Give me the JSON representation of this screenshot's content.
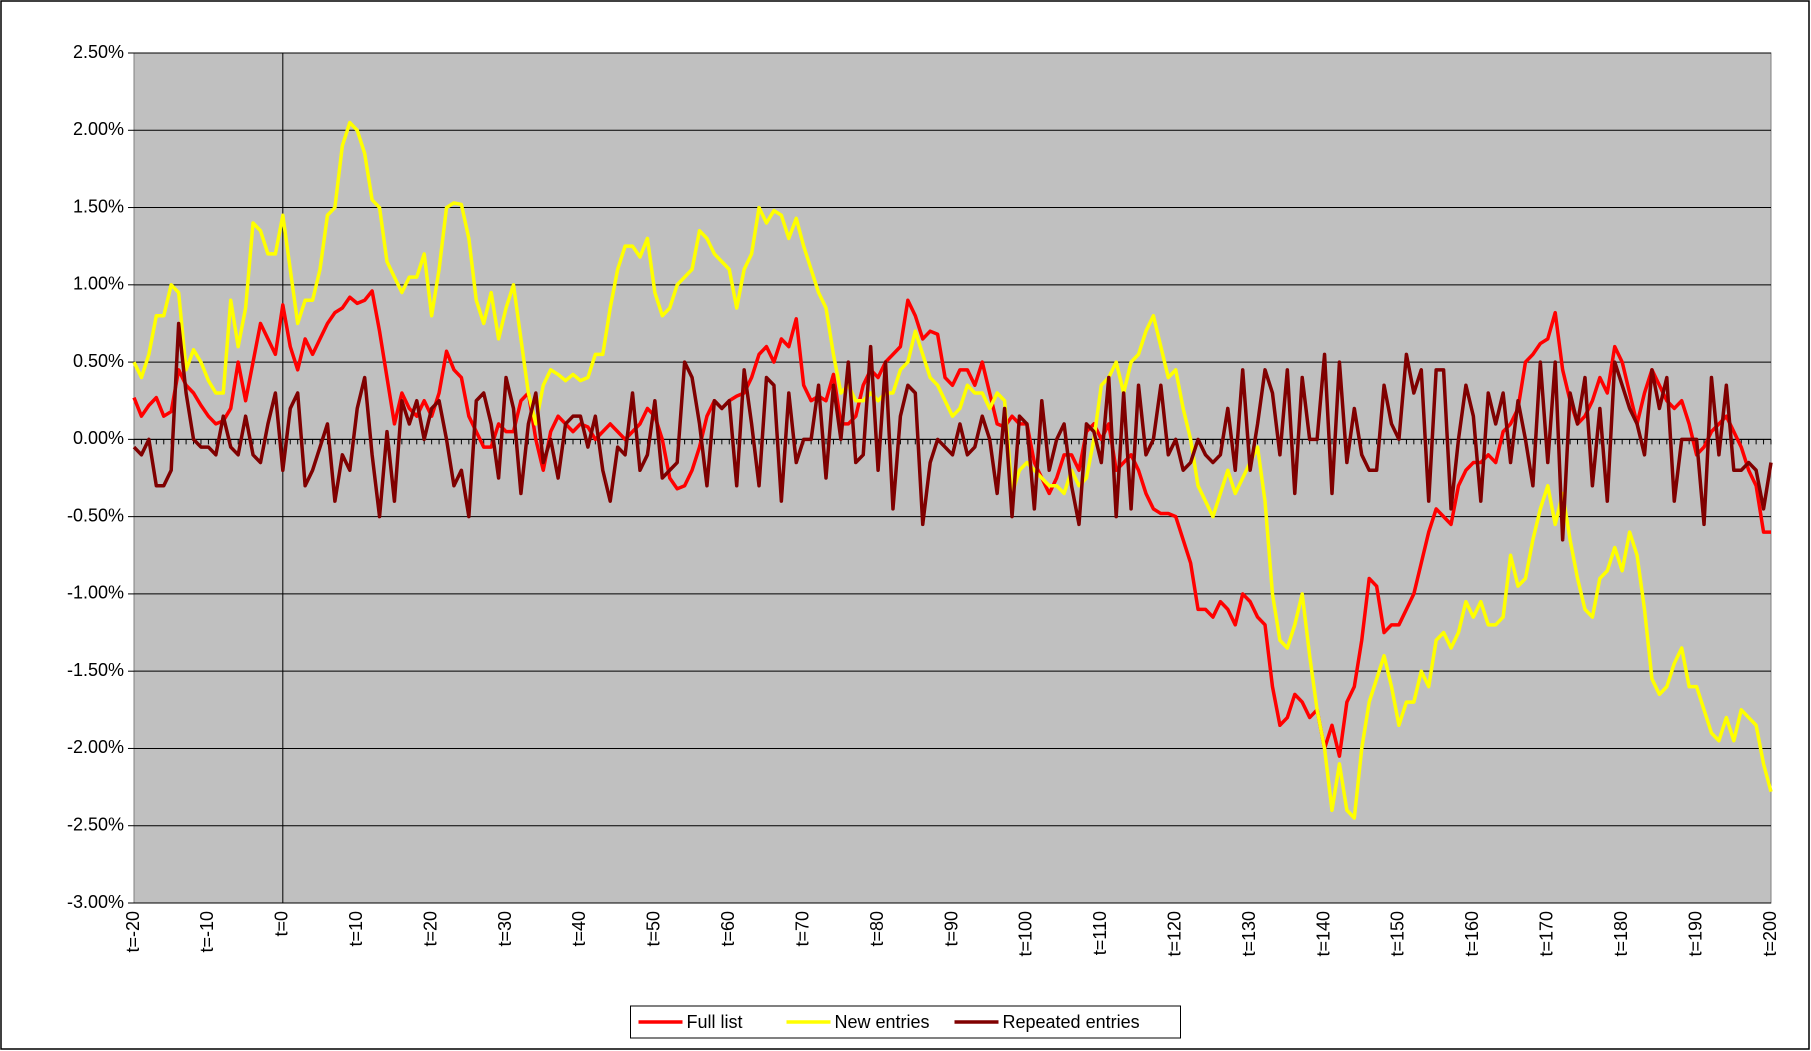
{
  "chart_data": {
    "type": "line",
    "categories": [
      "t=-20",
      null,
      null,
      null,
      null,
      null,
      null,
      null,
      null,
      null,
      "t=-10",
      null,
      null,
      null,
      null,
      null,
      null,
      null,
      null,
      null,
      "t=0",
      null,
      null,
      null,
      null,
      null,
      null,
      null,
      null,
      null,
      "t=10",
      null,
      null,
      null,
      null,
      null,
      null,
      null,
      null,
      null,
      "t=20",
      null,
      null,
      null,
      null,
      null,
      null,
      null,
      null,
      null,
      "t=30",
      null,
      null,
      null,
      null,
      null,
      null,
      null,
      null,
      null,
      "t=40",
      null,
      null,
      null,
      null,
      null,
      null,
      null,
      null,
      null,
      "t=50",
      null,
      null,
      null,
      null,
      null,
      null,
      null,
      null,
      null,
      "t=60",
      null,
      null,
      null,
      null,
      null,
      null,
      null,
      null,
      null,
      "t=70",
      null,
      null,
      null,
      null,
      null,
      null,
      null,
      null,
      null,
      "t=80",
      null,
      null,
      null,
      null,
      null,
      null,
      null,
      null,
      null,
      "t=90",
      null,
      null,
      null,
      null,
      null,
      null,
      null,
      null,
      null,
      "t=100",
      null,
      null,
      null,
      null,
      null,
      null,
      null,
      null,
      null,
      "t=110",
      null,
      null,
      null,
      null,
      null,
      null,
      null,
      null,
      null,
      "t=120",
      null,
      null,
      null,
      null,
      null,
      null,
      null,
      null,
      null,
      "t=130",
      null,
      null,
      null,
      null,
      null,
      null,
      null,
      null,
      null,
      "t=140",
      null,
      null,
      null,
      null,
      null,
      null,
      null,
      null,
      null,
      "t=150",
      null,
      null,
      null,
      null,
      null,
      null,
      null,
      null,
      null,
      "t=160",
      null,
      null,
      null,
      null,
      null,
      null,
      null,
      null,
      null,
      "t=170",
      null,
      null,
      null,
      null,
      null,
      null,
      null,
      null,
      null,
      "t=180",
      null,
      null,
      null,
      null,
      null,
      null,
      null,
      null,
      null,
      "t=190",
      null,
      null,
      null,
      null,
      null,
      null,
      null,
      null,
      null,
      "t=200"
    ],
    "series": [
      {
        "name": "Full list",
        "color": "#ff0000",
        "values": [
          0.27,
          0.15,
          0.22,
          0.27,
          0.15,
          0.18,
          0.45,
          0.35,
          0.3,
          0.22,
          0.15,
          0.1,
          0.12,
          0.2,
          0.5,
          0.25,
          0.5,
          0.75,
          0.65,
          0.55,
          0.87,
          0.6,
          0.45,
          0.65,
          0.55,
          0.65,
          0.75,
          0.82,
          0.85,
          0.92,
          0.88,
          0.9,
          0.96,
          0.7,
          0.4,
          0.1,
          0.3,
          0.2,
          0.15,
          0.25,
          0.15,
          0.3,
          0.57,
          0.45,
          0.4,
          0.15,
          0.05,
          -0.05,
          -0.05,
          0.1,
          0.05,
          0.05,
          0.25,
          0.3,
          0,
          -0.2,
          0.05,
          0.15,
          0.1,
          0.05,
          0.1,
          0.08,
          0,
          0.05,
          0.1,
          0.05,
          0,
          0.05,
          0.1,
          0.2,
          0.15,
          0,
          -0.25,
          -0.32,
          -0.3,
          -0.2,
          -0.05,
          0.15,
          0.25,
          0.2,
          0.25,
          0.28,
          0.3,
          0.4,
          0.55,
          0.6,
          0.5,
          0.65,
          0.6,
          0.78,
          0.35,
          0.25,
          0.28,
          0.25,
          0.42,
          0.1,
          0.1,
          0.15,
          0.35,
          0.45,
          0.4,
          0.5,
          0.55,
          0.6,
          0.9,
          0.8,
          0.65,
          0.7,
          0.68,
          0.4,
          0.35,
          0.45,
          0.45,
          0.35,
          0.5,
          0.3,
          0.1,
          0.08,
          0.15,
          0.1,
          0.1,
          -0.15,
          -0.25,
          -0.35,
          -0.25,
          -0.1,
          -0.1,
          -0.2,
          0.05,
          0.1,
          0,
          0.1,
          -0.2,
          -0.15,
          -0.1,
          -0.2,
          -0.35,
          -0.45,
          -0.48,
          -0.48,
          -0.5,
          -0.65,
          -0.8,
          -1.1,
          -1.1,
          -1.15,
          -1.05,
          -1.1,
          -1.2,
          -1,
          -1.05,
          -1.15,
          -1.2,
          -1.6,
          -1.85,
          -1.8,
          -1.65,
          -1.7,
          -1.8,
          -1.75,
          -2,
          -1.85,
          -2.05,
          -1.7,
          -1.6,
          -1.3,
          -0.9,
          -0.95,
          -1.25,
          -1.2,
          -1.2,
          -1.1,
          -1,
          -0.8,
          -0.6,
          -0.45,
          -0.5,
          -0.55,
          -0.3,
          -0.2,
          -0.15,
          -0.15,
          -0.1,
          -0.15,
          0.05,
          0.1,
          0.2,
          0.5,
          0.55,
          0.62,
          0.65,
          0.82,
          0.45,
          0.25,
          0.1,
          0.15,
          0.25,
          0.4,
          0.3,
          0.6,
          0.5,
          0.3,
          0.1,
          0.3,
          0.45,
          0.35,
          0.25,
          0.2,
          0.25,
          0.1,
          -0.1,
          -0.05,
          0.05,
          0.1,
          0.15,
          0.05,
          -0.05,
          -0.2,
          -0.3,
          -0.6,
          -0.6
        ]
      },
      {
        "name": "New entries",
        "color": "#ffff00",
        "values": [
          0.5,
          0.4,
          0.55,
          0.8,
          0.8,
          1.0,
          0.95,
          0.45,
          0.58,
          0.5,
          0.38,
          0.3,
          0.3,
          0.9,
          0.6,
          0.85,
          1.4,
          1.35,
          1.2,
          1.2,
          1.45,
          1.1,
          0.75,
          0.9,
          0.9,
          1.1,
          1.45,
          1.5,
          1.9,
          2.05,
          2.0,
          1.85,
          1.55,
          1.5,
          1.15,
          1.05,
          0.95,
          1.05,
          1.05,
          1.2,
          0.8,
          1.1,
          1.5,
          1.53,
          1.52,
          1.3,
          0.9,
          0.75,
          0.95,
          0.65,
          0.85,
          1.0,
          0.65,
          0.3,
          0.1,
          0.35,
          0.45,
          0.42,
          0.38,
          0.42,
          0.38,
          0.4,
          0.55,
          0.55,
          0.85,
          1.1,
          1.25,
          1.25,
          1.18,
          1.3,
          0.95,
          0.8,
          0.85,
          1.0,
          1.05,
          1.1,
          1.35,
          1.3,
          1.2,
          1.15,
          1.1,
          0.85,
          1.1,
          1.2,
          1.5,
          1.4,
          1.48,
          1.45,
          1.3,
          1.43,
          1.25,
          1.1,
          0.95,
          0.85,
          0.55,
          0.3,
          0.35,
          0.25,
          0.25,
          0.3,
          0.25,
          0.3,
          0.3,
          0.45,
          0.5,
          0.7,
          0.55,
          0.4,
          0.35,
          0.25,
          0.15,
          0.2,
          0.35,
          0.3,
          0.3,
          0.2,
          0.3,
          0.25,
          -0.35,
          -0.2,
          -0.15,
          -0.2,
          -0.25,
          -0.3,
          -0.3,
          -0.35,
          -0.2,
          -0.3,
          -0.25,
          0,
          0.35,
          0.4,
          0.5,
          0.3,
          0.5,
          0.55,
          0.7,
          0.8,
          0.6,
          0.4,
          0.45,
          0.2,
          0,
          -0.3,
          -0.4,
          -0.5,
          -0.35,
          -0.2,
          -0.35,
          -0.25,
          -0.15,
          -0.05,
          -0.4,
          -1.0,
          -1.3,
          -1.35,
          -1.2,
          -1.0,
          -1.4,
          -1.75,
          -2.0,
          -2.4,
          -2.1,
          -2.4,
          -2.45,
          -2.0,
          -1.7,
          -1.55,
          -1.4,
          -1.6,
          -1.85,
          -1.7,
          -1.7,
          -1.5,
          -1.6,
          -1.3,
          -1.25,
          -1.35,
          -1.25,
          -1.05,
          -1.15,
          -1.05,
          -1.2,
          -1.2,
          -1.15,
          -0.75,
          -0.95,
          -0.9,
          -0.65,
          -0.45,
          -0.3,
          -0.55,
          -0.35,
          -0.65,
          -0.9,
          -1.1,
          -1.15,
          -0.9,
          -0.85,
          -0.7,
          -0.85,
          -0.6,
          -0.75,
          -1.1,
          -1.55,
          -1.65,
          -1.6,
          -1.45,
          -1.35,
          -1.6,
          -1.6,
          -1.75,
          -1.9,
          -1.95,
          -1.8,
          -1.95,
          -1.75,
          -1.8,
          -1.85,
          -2.1,
          -2.28
        ]
      },
      {
        "name": "Repeated entries",
        "color": "#800000",
        "values": [
          -0.05,
          -0.1,
          0,
          -0.3,
          -0.3,
          -0.2,
          0.75,
          0.3,
          0,
          -0.05,
          -0.05,
          -0.1,
          0.15,
          -0.05,
          -0.1,
          0.15,
          -0.1,
          -0.15,
          0.1,
          0.3,
          -0.2,
          0.2,
          0.3,
          -0.3,
          -0.2,
          -0.05,
          0.1,
          -0.4,
          -0.1,
          -0.2,
          0.2,
          0.4,
          -0.1,
          -0.5,
          0.05,
          -0.4,
          0.25,
          0.1,
          0.25,
          0,
          0.2,
          0.25,
          0,
          -0.3,
          -0.2,
          -0.5,
          0.25,
          0.3,
          0.1,
          -0.25,
          0.4,
          0.2,
          -0.35,
          0.1,
          0.3,
          -0.15,
          0,
          -0.25,
          0.1,
          0.15,
          0.15,
          -0.05,
          0.15,
          -0.2,
          -0.4,
          -0.05,
          -0.1,
          0.3,
          -0.2,
          -0.1,
          0.25,
          -0.25,
          -0.2,
          -0.15,
          0.5,
          0.4,
          0.1,
          -0.3,
          0.25,
          0.2,
          0.25,
          -0.3,
          0.45,
          0.1,
          -0.3,
          0.4,
          0.35,
          -0.4,
          0.3,
          -0.15,
          0,
          0,
          0.35,
          -0.25,
          0.35,
          0,
          0.5,
          -0.15,
          -0.1,
          0.6,
          -0.2,
          0.5,
          -0.45,
          0.15,
          0.35,
          0.3,
          -0.55,
          -0.15,
          0,
          -0.05,
          -0.1,
          0.1,
          -0.1,
          -0.05,
          0.15,
          0,
          -0.35,
          0.2,
          -0.5,
          0.15,
          0.1,
          -0.45,
          0.25,
          -0.2,
          0,
          0.1,
          -0.3,
          -0.55,
          0.1,
          0.05,
          -0.15,
          0.4,
          -0.5,
          0.3,
          -0.45,
          0.35,
          -0.1,
          0,
          0.35,
          -0.1,
          0,
          -0.2,
          -0.15,
          0,
          -0.1,
          -0.15,
          -0.1,
          0.2,
          -0.2,
          0.45,
          -0.2,
          0.1,
          0.45,
          0.3,
          -0.1,
          0.45,
          -0.35,
          0.4,
          0,
          0,
          0.55,
          -0.35,
          0.5,
          -0.15,
          0.2,
          -0.1,
          -0.2,
          -0.2,
          0.35,
          0.1,
          0,
          0.55,
          0.3,
          0.45,
          -0.4,
          0.45,
          0.45,
          -0.45,
          0,
          0.35,
          0.15,
          -0.4,
          0.3,
          0.1,
          0.3,
          -0.15,
          0.25,
          0,
          -0.3,
          0.5,
          -0.15,
          0.5,
          -0.65,
          0.3,
          0.1,
          0.4,
          -0.3,
          0.2,
          -0.4,
          0.5,
          0.35,
          0.2,
          0.1,
          -0.1,
          0.45,
          0.2,
          0.4,
          -0.4,
          0,
          0,
          0,
          -0.55,
          0.4,
          -0.1,
          0.35,
          -0.2,
          -0.2,
          -0.15,
          -0.2,
          -0.45,
          -0.15
        ]
      }
    ],
    "ylim": [
      -3,
      2.5
    ],
    "yticks": [
      {
        "value": -3,
        "label": "-3.00%"
      },
      {
        "value": -2.5,
        "label": "-2.50%"
      },
      {
        "value": -2,
        "label": "-2.00%"
      },
      {
        "value": -1.5,
        "label": "-1.50%"
      },
      {
        "value": -1,
        "label": "-1.00%"
      },
      {
        "value": -0.5,
        "label": "-0.50%"
      },
      {
        "value": 0,
        "label": "0.00%"
      },
      {
        "value": 0.5,
        "label": "0.50%"
      },
      {
        "value": 1,
        "label": "1.00%"
      },
      {
        "value": 1.5,
        "label": "1.50%"
      },
      {
        "value": 2,
        "label": "2.00%"
      },
      {
        "value": 2.5,
        "label": "2.50%"
      }
    ],
    "grid": true,
    "legend": "bottom"
  }
}
